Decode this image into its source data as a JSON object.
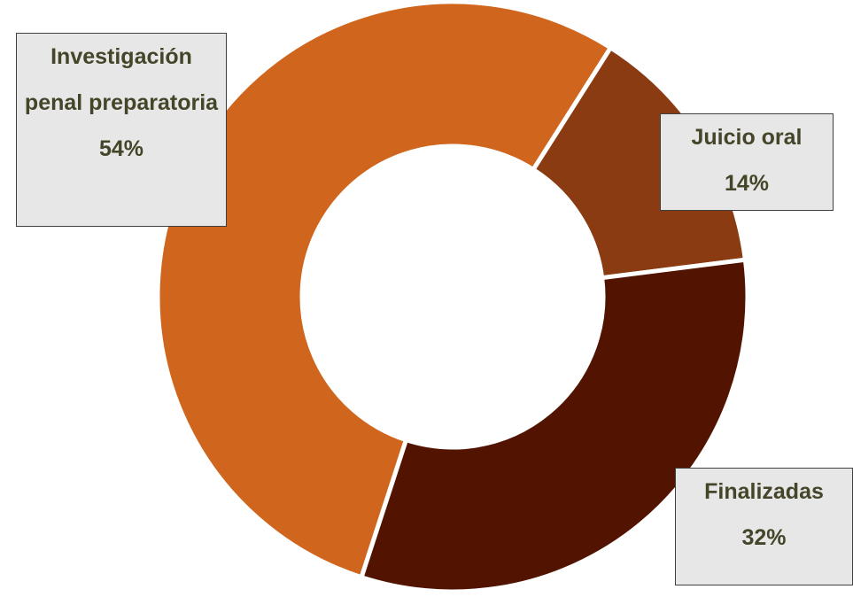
{
  "chart_data": {
    "type": "donut",
    "categories": [
      "Investigación penal preparatoria",
      "Juicio oral",
      "Finalizadas"
    ],
    "values": [
      54,
      14,
      32
    ],
    "value_labels": [
      "54%",
      "14%",
      "32%"
    ],
    "colors": [
      "#d0661e",
      "#8a3b12",
      "#521400"
    ]
  }
}
